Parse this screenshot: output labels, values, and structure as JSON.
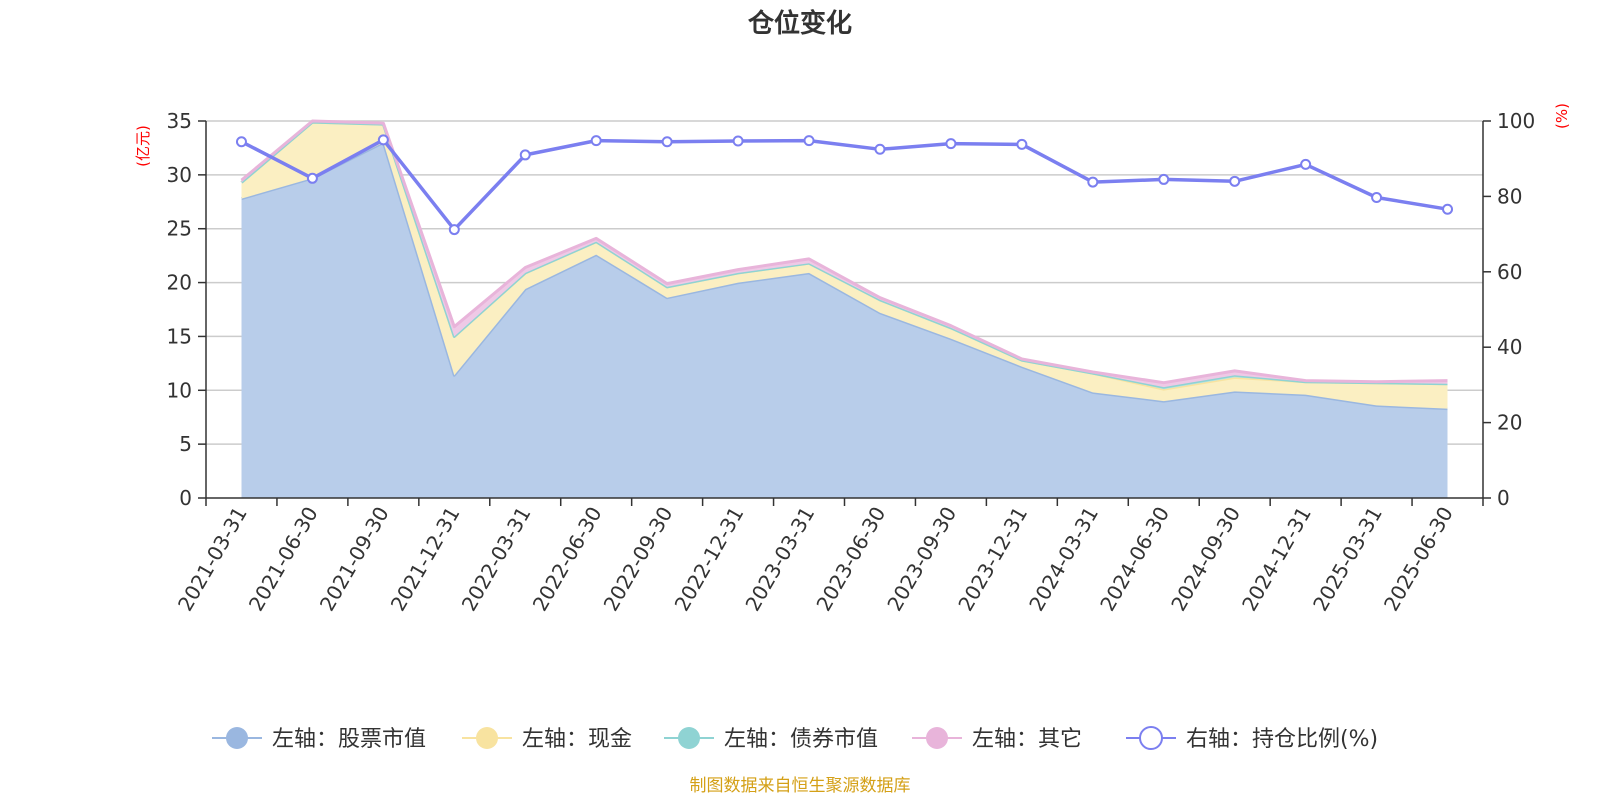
{
  "chart_data": {
    "type": "area",
    "title": "仓位变化",
    "y_left_unit": "(亿元)",
    "y_right_unit": "(%)",
    "ylim_left": [
      0,
      35
    ],
    "yticks_left": [
      "0",
      "5",
      "10",
      "15",
      "20",
      "25",
      "30",
      "35"
    ],
    "ylim_right": [
      0,
      100
    ],
    "yticks_right": [
      "0",
      "20",
      "40",
      "60",
      "80",
      "100"
    ],
    "grid": true,
    "legend_position": "bottom",
    "categories": [
      "2021-03-31",
      "2021-06-30",
      "2021-09-30",
      "2021-12-31",
      "2022-03-31",
      "2022-06-30",
      "2022-09-30",
      "2022-12-31",
      "2023-03-31",
      "2023-06-30",
      "2023-09-30",
      "2023-12-31",
      "2024-03-31",
      "2024-06-30",
      "2024-09-30",
      "2024-12-31",
      "2025-03-31",
      "2025-06-30"
    ],
    "series": [
      {
        "name": "左轴：股票市值",
        "axis": "left",
        "kind": "area",
        "color": "#9ab7e0",
        "fill": "#b8cdea",
        "values": [
          27.8,
          29.7,
          33.0,
          11.4,
          19.4,
          22.6,
          18.6,
          20.0,
          20.9,
          17.2,
          14.8,
          12.2,
          9.8,
          9.0,
          9.9,
          9.6,
          8.6,
          8.3
        ]
      },
      {
        "name": "左轴：现金",
        "axis": "left",
        "kind": "area",
        "color": "#f8e3a0",
        "fill": "#fbefc2",
        "values": [
          1.5,
          5.2,
          1.7,
          3.6,
          1.5,
          1.2,
          1.0,
          0.9,
          0.9,
          1.2,
          1.0,
          0.6,
          1.8,
          1.1,
          1.3,
          1.2,
          2.1,
          2.3
        ]
      },
      {
        "name": "左轴：债券市值",
        "axis": "left",
        "kind": "area",
        "color": "#8fd3d3",
        "fill": "#b5e4e4",
        "values": [
          0,
          0,
          0,
          0,
          0,
          0,
          0,
          0,
          0,
          0,
          0,
          0,
          0,
          0.2,
          0.2,
          0,
          0,
          0
        ]
      },
      {
        "name": "左轴：其它",
        "axis": "left",
        "kind": "area",
        "color": "#e8b4da",
        "fill": "#efc9e6",
        "values": [
          0.2,
          0.1,
          0.1,
          0.9,
          0.5,
          0.3,
          0.3,
          0.3,
          0.4,
          0.2,
          0.2,
          0.1,
          0.1,
          0.4,
          0.4,
          0.1,
          0.1,
          0.3
        ]
      },
      {
        "name": "右轴：持仓比例(%)",
        "axis": "right",
        "kind": "line",
        "color": "#7b7ff0",
        "values": [
          94.5,
          84.8,
          95.0,
          71.2,
          91.0,
          94.8,
          94.5,
          94.7,
          94.8,
          92.5,
          94.0,
          93.8,
          83.8,
          84.5,
          84.0,
          88.5,
          79.7,
          76.6
        ]
      }
    ]
  },
  "footer": "制图数据来自恒生聚源数据库"
}
